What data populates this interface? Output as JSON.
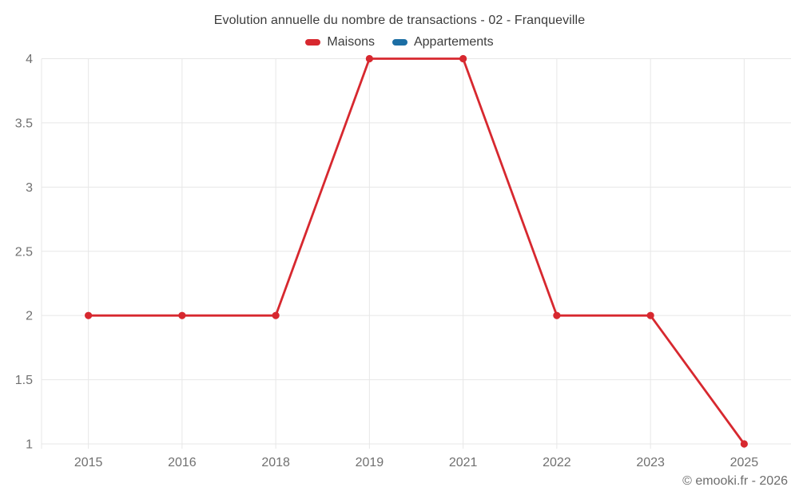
{
  "chart_data": {
    "type": "line",
    "title": "Evolution annuelle du nombre de transactions - 02 - Franqueville",
    "categories": [
      "2015",
      "2016",
      "2018",
      "2019",
      "2021",
      "2022",
      "2023",
      "2025"
    ],
    "series": [
      {
        "name": "Maisons",
        "color": "#d7282f",
        "values": [
          2,
          2,
          2,
          4,
          4,
          2,
          2,
          1
        ]
      },
      {
        "name": "Appartements",
        "color": "#1c6ea4",
        "values": []
      }
    ],
    "xlabel": "",
    "ylabel": "",
    "ylim": [
      1,
      4
    ],
    "yticks": [
      4,
      3.5,
      3,
      2.5,
      2,
      1.5,
      1
    ],
    "grid": true,
    "legend_position": "top",
    "colors": {
      "gridline": "#e7e7e7",
      "axis_text": "#707070",
      "title_text": "#3c3c3c",
      "watermark_text": "#6d6d6d"
    }
  },
  "footer": {
    "watermark": "© emooki.fr - 2026"
  }
}
